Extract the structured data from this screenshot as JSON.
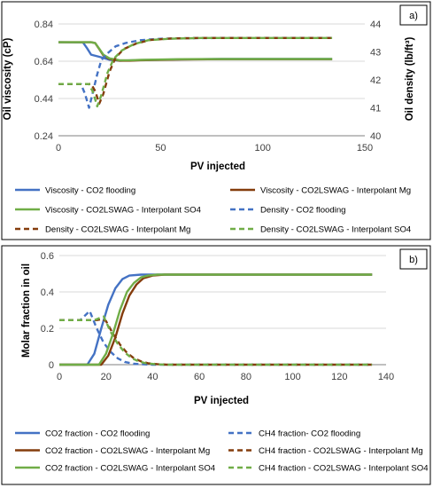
{
  "colors": {
    "blue": "#4472C4",
    "brown": "#843C0C",
    "green": "#70AD47",
    "grid": "#d9d9d9",
    "axis": "#808080",
    "frame": "#000000"
  },
  "chart_data": [
    {
      "type": "line",
      "panel_tag": "a)",
      "xlabel": "PV injected",
      "ylabel": "Oil viscosity (cP)",
      "y2label": "Oil density (lb/ft³)",
      "xlim": [
        0,
        150
      ],
      "ylim": [
        0.24,
        0.84
      ],
      "y2lim": [
        40,
        44
      ],
      "x_ticks": [
        "0",
        "50",
        "100",
        "150"
      ],
      "y_ticks": [
        "0.24",
        "0.44",
        "0.64",
        "0.84"
      ],
      "y2_ticks": [
        "40",
        "41",
        "42",
        "43",
        "44"
      ],
      "grid": "horizontal",
      "legend_position": "bottom",
      "series": [
        {
          "name": "Viscosity - CO2 flooding",
          "axis": "left",
          "color": "blue",
          "dash": false,
          "x": [
            0,
            12,
            14,
            16,
            20,
            25,
            30,
            40,
            60,
            80,
            100,
            134
          ],
          "y": [
            0.742,
            0.741,
            0.71,
            0.675,
            0.664,
            0.648,
            0.643,
            0.646,
            0.65,
            0.652,
            0.652,
            0.652
          ]
        },
        {
          "name": "Viscosity - CO2LSWAG - Interpolant Mg",
          "axis": "left",
          "color": "brown",
          "dash": false,
          "x": [
            0,
            16,
            18,
            20,
            22,
            25,
            30,
            35,
            40,
            60,
            80,
            100,
            134
          ],
          "y": [
            0.742,
            0.742,
            0.737,
            0.705,
            0.672,
            0.652,
            0.643,
            0.643,
            0.645,
            0.649,
            0.651,
            0.651,
            0.651
          ]
        },
        {
          "name": "Viscosity - CO2LSWAG - Interpolant SO4",
          "axis": "left",
          "color": "green",
          "dash": false,
          "x": [
            0,
            16,
            18,
            20,
            22,
            25,
            30,
            35,
            40,
            60,
            80,
            100,
            134
          ],
          "y": [
            0.742,
            0.742,
            0.737,
            0.707,
            0.675,
            0.655,
            0.645,
            0.645,
            0.647,
            0.651,
            0.652,
            0.652,
            0.652
          ]
        },
        {
          "name": "Density - CO2 flooding",
          "axis": "right",
          "color": "blue",
          "dash": true,
          "x": [
            0,
            11,
            13,
            15,
            17,
            19,
            21,
            24,
            28,
            33,
            40,
            50,
            60,
            80,
            100,
            134
          ],
          "y": [
            41.85,
            41.85,
            41.5,
            41.0,
            41.6,
            42.2,
            42.7,
            42.95,
            43.2,
            43.32,
            43.42,
            43.47,
            43.49,
            43.5,
            43.5,
            43.5
          ]
        },
        {
          "name": "Density - CO2LSWAG - Interpolant Mg",
          "axis": "right",
          "color": "brown",
          "dash": true,
          "x": [
            0,
            16,
            18,
            20,
            22,
            25,
            28,
            32,
            38,
            45,
            55,
            70,
            100,
            134
          ],
          "y": [
            41.85,
            41.85,
            41.6,
            41.15,
            41.5,
            42.3,
            42.8,
            43.1,
            43.3,
            43.43,
            43.48,
            43.5,
            43.5,
            43.5
          ]
        },
        {
          "name": "Density - CO2LSWAG - Interpolant SO4",
          "axis": "right",
          "color": "green",
          "dash": true,
          "x": [
            0,
            15,
            17,
            19,
            21,
            24,
            27,
            31,
            37,
            44,
            54,
            70,
            100,
            134
          ],
          "y": [
            41.85,
            41.85,
            41.55,
            41.05,
            41.45,
            42.25,
            42.75,
            43.05,
            43.28,
            43.42,
            43.47,
            43.5,
            43.5,
            43.5
          ]
        }
      ]
    },
    {
      "type": "line",
      "panel_tag": "b)",
      "xlabel": "PV injected",
      "ylabel": "Molar fraction in oil",
      "xlim": [
        0,
        140
      ],
      "ylim": [
        0,
        0.6
      ],
      "x_ticks": [
        "0",
        "20",
        "40",
        "60",
        "80",
        "100",
        "120",
        "140"
      ],
      "y_ticks": [
        "0",
        "0.2",
        "0.4",
        "0.6"
      ],
      "grid": "horizontal",
      "legend_position": "bottom",
      "series": [
        {
          "name": "CO2 fraction - CO2 flooding",
          "color": "blue",
          "dash": false,
          "x": [
            0,
            12,
            15,
            18,
            21,
            24,
            27,
            30,
            35,
            40,
            60,
            100,
            134
          ],
          "y": [
            0,
            0,
            0.06,
            0.2,
            0.33,
            0.42,
            0.47,
            0.49,
            0.495,
            0.495,
            0.495,
            0.495,
            0.495
          ]
        },
        {
          "name": "CH4 fraction- CO2 flooding",
          "color": "blue",
          "dash": true,
          "x": [
            0,
            9,
            11,
            13,
            16,
            19,
            22,
            25,
            28,
            32,
            36,
            40,
            60,
            100,
            134
          ],
          "y": [
            0.245,
            0.245,
            0.27,
            0.295,
            0.2,
            0.12,
            0.07,
            0.035,
            0.015,
            0.005,
            0.002,
            0,
            0,
            0,
            0
          ]
        },
        {
          "name": "CO2 fraction - CO2LSWAG - Interpolant Mg",
          "color": "brown",
          "dash": false,
          "x": [
            0,
            18,
            21,
            24,
            27,
            30,
            33,
            36,
            40,
            45,
            60,
            100,
            134
          ],
          "y": [
            0,
            0,
            0.05,
            0.15,
            0.28,
            0.38,
            0.44,
            0.475,
            0.49,
            0.495,
            0.495,
            0.495,
            0.495
          ]
        },
        {
          "name": "CH4 fraction - CO2LSWAG - Interpolant Mg",
          "color": "brown",
          "dash": true,
          "x": [
            0,
            16,
            18,
            20,
            23,
            26,
            29,
            32,
            35,
            38,
            42,
            46,
            60,
            100,
            134
          ],
          "y": [
            0.245,
            0.245,
            0.25,
            0.24,
            0.17,
            0.11,
            0.065,
            0.035,
            0.018,
            0.008,
            0.003,
            0,
            0,
            0,
            0
          ]
        },
        {
          "name": "CO2 fraction - CO2LSWAG - Interpolant SO4",
          "color": "green",
          "dash": false,
          "x": [
            0,
            17,
            20,
            23,
            26,
            29,
            32,
            35,
            38,
            42,
            60,
            100,
            134
          ],
          "y": [
            0,
            0,
            0.06,
            0.17,
            0.3,
            0.4,
            0.45,
            0.48,
            0.49,
            0.495,
            0.495,
            0.495,
            0.495
          ]
        },
        {
          "name": "CH4 fraction - CO2LSWAG - Interpolant SO4",
          "color": "green",
          "dash": true,
          "x": [
            0,
            15,
            17,
            19,
            22,
            25,
            28,
            31,
            34,
            37,
            41,
            45,
            60,
            100,
            134
          ],
          "y": [
            0.245,
            0.245,
            0.255,
            0.265,
            0.18,
            0.115,
            0.068,
            0.036,
            0.018,
            0.008,
            0.003,
            0,
            0,
            0,
            0
          ]
        }
      ]
    }
  ]
}
